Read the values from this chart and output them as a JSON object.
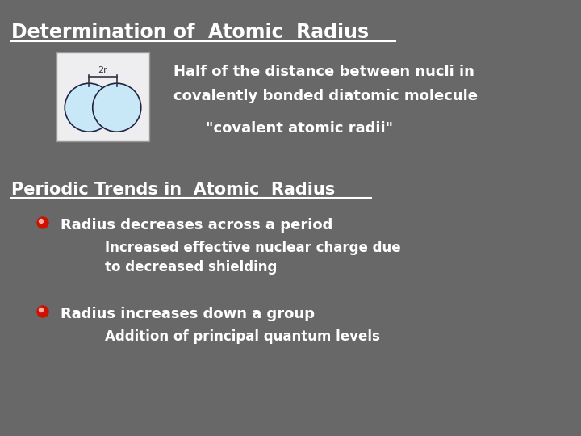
{
  "background_color": "#686868",
  "title": "Determination of  Atomic  Radius",
  "title_color": "#ffffff",
  "title_fontsize": 17,
  "subtitle_line1": "Half of the distance between nucli in",
  "subtitle_line2": "covalently bonded diatomic molecule",
  "subtitle_color": "#ffffff",
  "subtitle_fontsize": 13,
  "covalent_label": "\"covalent atomic radii\"",
  "covalent_fontsize": 13,
  "covalent_color": "#ffffff",
  "section2_title": "Periodic Trends in  Atomic  Radius",
  "section2_color": "#ffffff",
  "section2_fontsize": 15,
  "bullet1_main": "Radius decreases across a period",
  "bullet1_sub1": "Increased effective nuclear charge due",
  "bullet1_sub2": "to decreased shielding",
  "bullet2_main": "Radius increases down a group",
  "bullet2_sub": "Addition of principal quantum levels",
  "bullet_color": "#ffffff",
  "bullet_fontsize": 13,
  "bullet_sub_fontsize": 12,
  "bullet_dot_color": "#cc1100",
  "image_box_color": "#eeeef0",
  "atom_color": "#c8e8f8",
  "atom_outline": "#222244"
}
